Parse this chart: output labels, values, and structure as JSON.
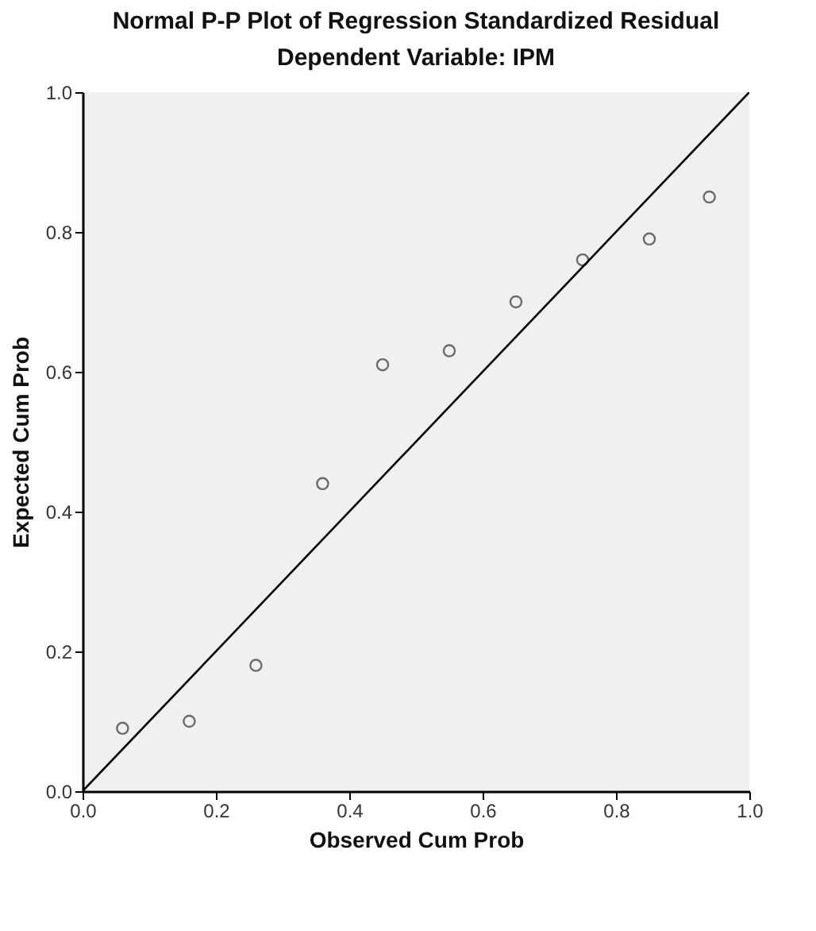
{
  "chart_data": {
    "type": "scatter",
    "title": "Normal P-P Plot of Regression Standardized Residual",
    "subtitle": "Dependent Variable: IPM",
    "xlabel": "Observed Cum Prob",
    "ylabel": "Expected Cum Prob",
    "series": [
      {
        "color": "#333333",
        "marker": "circle",
        "x": [
          0.06,
          0.16,
          0.26,
          0.36,
          0.45,
          0.55,
          0.65,
          0.75,
          0.85,
          0.94
        ],
        "values": [
          0.09,
          0.1,
          0.18,
          0.44,
          0.61,
          0.63,
          0.7,
          0.76,
          0.79,
          0.85
        ]
      },
      {
        "type": "line",
        "color": "#000000",
        "x": [
          0,
          1
        ],
        "values": [
          0,
          1
        ]
      }
    ],
    "xlim": [
      0,
      1
    ],
    "ylim": [
      0,
      1
    ],
    "xticks": [
      {
        "value": 0,
        "label": "0.0"
      },
      0.2,
      0.4,
      0.6,
      0.8,
      {
        "value": 1,
        "label": "1.0"
      }
    ],
    "yticks": [
      {
        "value": 0,
        "label": "0.0"
      },
      0.2,
      0.4,
      0.6,
      0.8,
      {
        "value": 1,
        "label": "1.0"
      }
    ],
    "grid": false
  }
}
